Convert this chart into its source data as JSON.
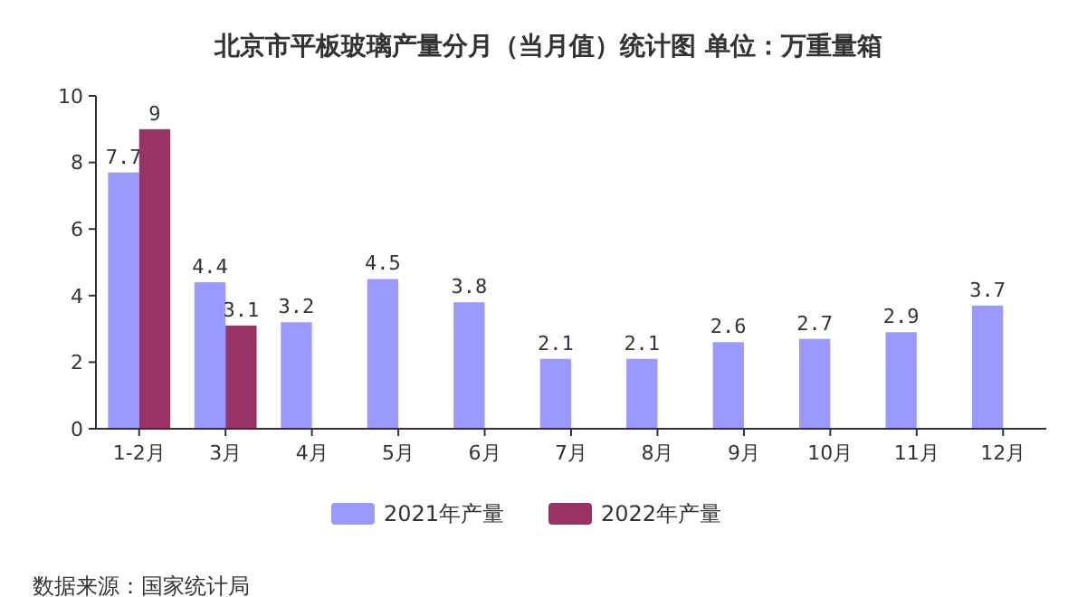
{
  "chart_data": {
    "type": "bar",
    "title": "北京市平板玻璃产量分月（当月值）统计图 单位：万重量箱",
    "categories": [
      "1-2月",
      "3月",
      "4月",
      "5月",
      "6月",
      "7月",
      "8月",
      "9月",
      "10月",
      "11月",
      "12月"
    ],
    "series": [
      {
        "name": "2021年产量",
        "color": "#9999ff",
        "values": [
          7.7,
          4.4,
          3.2,
          4.5,
          3.8,
          2.1,
          2.1,
          2.6,
          2.7,
          2.9,
          3.7
        ]
      },
      {
        "name": "2022年产量",
        "color": "#993366",
        "values": [
          9,
          3.1,
          null,
          null,
          null,
          null,
          null,
          null,
          null,
          null,
          null
        ]
      }
    ],
    "ylim": [
      0,
      10
    ],
    "yticks": [
      0,
      2,
      4,
      6,
      8,
      10
    ],
    "grid": false,
    "legend": "bottom",
    "data_labels": true,
    "annotations": [
      "数据来源：国家统计局"
    ]
  }
}
